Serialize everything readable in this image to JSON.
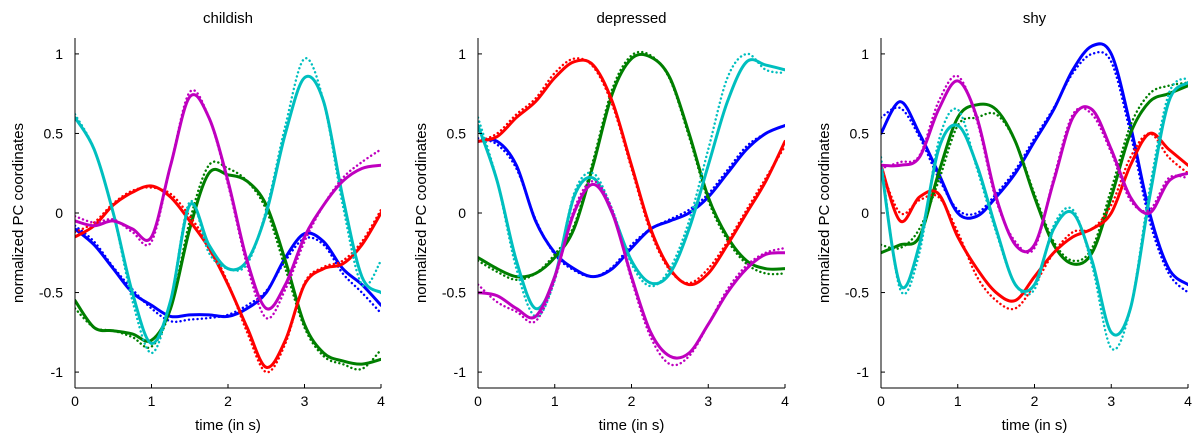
{
  "colors": {
    "blue": "#0000ff",
    "green": "#007f00",
    "red": "#ff0000",
    "cyan": "#00bfbf",
    "magenta": "#bf00bf"
  },
  "chart_data": [
    {
      "type": "line",
      "title": "childish",
      "xlabel": "time (in s)",
      "ylabel": "normalized PC coordinates",
      "xlim": [
        0,
        4
      ],
      "ylim": [
        -1.1,
        1.1
      ],
      "xticks": [
        0,
        1,
        2,
        3,
        4
      ],
      "yticks": [
        -1,
        -0.5,
        0,
        0.5,
        1
      ],
      "x": [
        0,
        0.25,
        0.5,
        0.75,
        1,
        1.25,
        1.5,
        1.75,
        2,
        2.25,
        2.5,
        2.75,
        3,
        3.25,
        3.5,
        3.75,
        4
      ],
      "series": [
        {
          "color": "blue",
          "style": "solid",
          "values": [
            -0.1,
            -0.2,
            -0.35,
            -0.5,
            -0.58,
            -0.65,
            -0.64,
            -0.64,
            -0.65,
            -0.6,
            -0.5,
            -0.28,
            -0.13,
            -0.18,
            -0.35,
            -0.45,
            -0.58
          ]
        },
        {
          "color": "blue",
          "style": "dotted",
          "values": [
            -0.08,
            -0.18,
            -0.34,
            -0.48,
            -0.6,
            -0.68,
            -0.67,
            -0.66,
            -0.64,
            -0.58,
            -0.49,
            -0.3,
            -0.16,
            -0.2,
            -0.38,
            -0.5,
            -0.63
          ]
        },
        {
          "color": "green",
          "style": "solid",
          "values": [
            -0.55,
            -0.72,
            -0.74,
            -0.76,
            -0.8,
            -0.6,
            -0.1,
            0.25,
            0.24,
            0.2,
            0.05,
            -0.3,
            -0.7,
            -0.88,
            -0.93,
            -0.95,
            -0.92
          ]
        },
        {
          "color": "green",
          "style": "dotted",
          "values": [
            -0.6,
            -0.72,
            -0.74,
            -0.78,
            -0.84,
            -0.6,
            -0.05,
            0.3,
            0.28,
            0.2,
            0.02,
            -0.35,
            -0.72,
            -0.9,
            -0.95,
            -0.98,
            -0.86
          ]
        },
        {
          "color": "red",
          "style": "solid",
          "values": [
            -0.15,
            -0.08,
            0.05,
            0.13,
            0.17,
            0.1,
            -0.05,
            -0.22,
            -0.45,
            -0.72,
            -0.97,
            -0.8,
            -0.45,
            -0.35,
            -0.32,
            -0.2,
            0.0
          ]
        },
        {
          "color": "red",
          "style": "dotted",
          "values": [
            -0.12,
            -0.06,
            0.06,
            0.14,
            0.16,
            0.12,
            -0.02,
            -0.2,
            -0.44,
            -0.75,
            -1.0,
            -0.82,
            -0.44,
            -0.34,
            -0.3,
            -0.18,
            0.02
          ]
        },
        {
          "color": "cyan",
          "style": "solid",
          "values": [
            0.6,
            0.4,
            0.0,
            -0.5,
            -0.82,
            -0.55,
            0.05,
            -0.2,
            -0.35,
            -0.3,
            0.0,
            0.5,
            0.85,
            0.7,
            0.1,
            -0.4,
            -0.5
          ]
        },
        {
          "color": "cyan",
          "style": "dotted",
          "values": [
            0.62,
            0.4,
            0.0,
            -0.55,
            -0.88,
            -0.55,
            0.07,
            -0.25,
            -0.35,
            -0.32,
            0.02,
            0.55,
            0.97,
            0.7,
            0.05,
            -0.45,
            -0.3
          ]
        },
        {
          "color": "magenta",
          "style": "solid",
          "values": [
            -0.05,
            -0.08,
            -0.05,
            -0.1,
            -0.15,
            0.3,
            0.73,
            0.6,
            0.2,
            -0.3,
            -0.6,
            -0.45,
            -0.15,
            0.05,
            0.2,
            0.28,
            0.3
          ]
        },
        {
          "color": "magenta",
          "style": "dotted",
          "values": [
            -0.02,
            -0.06,
            -0.04,
            -0.12,
            -0.18,
            0.3,
            0.76,
            0.6,
            0.18,
            -0.33,
            -0.66,
            -0.48,
            -0.18,
            0.05,
            0.22,
            0.32,
            0.4
          ]
        }
      ]
    },
    {
      "type": "line",
      "title": "depressed",
      "xlabel": "time (in s)",
      "ylabel": "normalized PC coordinates",
      "xlim": [
        0,
        4
      ],
      "ylim": [
        -1.1,
        1.1
      ],
      "xticks": [
        0,
        1,
        2,
        3,
        4
      ],
      "yticks": [
        -1,
        -0.5,
        0,
        0.5,
        1
      ],
      "x": [
        0,
        0.25,
        0.5,
        0.75,
        1,
        1.25,
        1.5,
        1.75,
        2,
        2.25,
        2.5,
        2.75,
        3,
        3.25,
        3.5,
        3.75,
        4
      ],
      "series": [
        {
          "color": "blue",
          "style": "solid",
          "values": [
            0.45,
            0.45,
            0.3,
            -0.05,
            -0.25,
            -0.35,
            -0.4,
            -0.35,
            -0.22,
            -0.1,
            -0.05,
            0.0,
            0.1,
            0.25,
            0.4,
            0.5,
            0.55
          ]
        },
        {
          "color": "blue",
          "style": "dotted",
          "values": [
            0.47,
            0.43,
            0.28,
            -0.04,
            -0.26,
            -0.36,
            -0.4,
            -0.34,
            -0.2,
            -0.1,
            -0.04,
            0.02,
            0.12,
            0.27,
            0.42,
            0.5,
            0.55
          ]
        },
        {
          "color": "green",
          "style": "solid",
          "values": [
            -0.28,
            -0.35,
            -0.4,
            -0.38,
            -0.28,
            -0.1,
            0.3,
            0.75,
            0.97,
            0.98,
            0.85,
            0.5,
            0.1,
            -0.15,
            -0.3,
            -0.35,
            -0.35
          ]
        },
        {
          "color": "green",
          "style": "dotted",
          "values": [
            -0.3,
            -0.37,
            -0.42,
            -0.38,
            -0.26,
            -0.08,
            0.33,
            0.78,
            0.99,
            0.99,
            0.84,
            0.48,
            0.08,
            -0.17,
            -0.32,
            -0.38,
            -0.38
          ]
        },
        {
          "color": "red",
          "style": "solid",
          "values": [
            0.45,
            0.48,
            0.6,
            0.7,
            0.85,
            0.95,
            0.93,
            0.7,
            0.3,
            -0.1,
            -0.35,
            -0.45,
            -0.38,
            -0.2,
            0.0,
            0.2,
            0.45
          ]
        },
        {
          "color": "red",
          "style": "dotted",
          "values": [
            0.45,
            0.5,
            0.62,
            0.72,
            0.88,
            0.97,
            0.92,
            0.68,
            0.28,
            -0.12,
            -0.36,
            -0.44,
            -0.35,
            -0.18,
            0.02,
            0.22,
            0.42
          ]
        },
        {
          "color": "cyan",
          "style": "solid",
          "values": [
            0.55,
            0.2,
            -0.3,
            -0.6,
            -0.4,
            0.1,
            0.22,
            0.0,
            -0.3,
            -0.44,
            -0.38,
            -0.1,
            0.3,
            0.7,
            0.95,
            0.93,
            0.9
          ]
        },
        {
          "color": "cyan",
          "style": "dotted",
          "values": [
            0.6,
            0.2,
            -0.35,
            -0.65,
            -0.42,
            0.12,
            0.25,
            0.02,
            -0.32,
            -0.46,
            -0.35,
            -0.05,
            0.4,
            0.85,
            1.0,
            0.9,
            0.88
          ]
        },
        {
          "color": "magenta",
          "style": "solid",
          "values": [
            -0.5,
            -0.52,
            -0.6,
            -0.65,
            -0.4,
            0.0,
            0.18,
            0.0,
            -0.4,
            -0.75,
            -0.9,
            -0.88,
            -0.7,
            -0.5,
            -0.35,
            -0.26,
            -0.25
          ]
        },
        {
          "color": "magenta",
          "style": "dotted",
          "values": [
            -0.45,
            -0.56,
            -0.62,
            -0.68,
            -0.42,
            0.02,
            0.2,
            0.02,
            -0.42,
            -0.78,
            -0.95,
            -0.9,
            -0.7,
            -0.48,
            -0.33,
            -0.25,
            -0.22
          ]
        }
      ]
    },
    {
      "type": "line",
      "title": "shy",
      "xlabel": "time (in s)",
      "ylabel": "normalized PC coordinates",
      "xlim": [
        0,
        4
      ],
      "ylim": [
        -1.1,
        1.1
      ],
      "xticks": [
        0,
        1,
        2,
        3,
        4
      ],
      "yticks": [
        -1,
        -0.5,
        0,
        0.5,
        1
      ],
      "x": [
        0,
        0.25,
        0.5,
        0.75,
        1,
        1.25,
        1.5,
        1.75,
        2,
        2.25,
        2.5,
        2.75,
        3,
        3.25,
        3.5,
        3.75,
        4
      ],
      "series": [
        {
          "color": "blue",
          "style": "solid",
          "values": [
            0.5,
            0.7,
            0.5,
            0.25,
            0.0,
            -0.02,
            0.1,
            0.25,
            0.45,
            0.65,
            0.9,
            1.05,
            1.0,
            0.55,
            0.0,
            -0.35,
            -0.45
          ]
        },
        {
          "color": "blue",
          "style": "dotted",
          "values": [
            0.6,
            0.66,
            0.48,
            0.22,
            0.02,
            0.0,
            0.12,
            0.27,
            0.47,
            0.66,
            0.88,
            1.0,
            0.95,
            0.5,
            -0.05,
            -0.38,
            -0.5
          ]
        },
        {
          "color": "green",
          "style": "solid",
          "values": [
            -0.25,
            -0.2,
            -0.15,
            0.25,
            0.6,
            0.68,
            0.65,
            0.45,
            0.1,
            -0.2,
            -0.32,
            -0.25,
            0.1,
            0.5,
            0.7,
            0.75,
            0.8
          ]
        },
        {
          "color": "green",
          "style": "dotted",
          "values": [
            -0.2,
            -0.22,
            -0.1,
            0.2,
            0.55,
            0.6,
            0.62,
            0.45,
            0.12,
            -0.18,
            -0.3,
            -0.22,
            0.15,
            0.55,
            0.75,
            0.8,
            0.82
          ]
        },
        {
          "color": "red",
          "style": "solid",
          "values": [
            0.3,
            -0.05,
            0.1,
            0.12,
            -0.15,
            -0.35,
            -0.5,
            -0.55,
            -0.4,
            -0.25,
            -0.15,
            -0.1,
            0.0,
            0.3,
            0.5,
            0.4,
            0.3
          ]
        },
        {
          "color": "red",
          "style": "dotted",
          "values": [
            0.28,
            0.0,
            0.08,
            0.1,
            -0.12,
            -0.4,
            -0.55,
            -0.6,
            -0.45,
            -0.25,
            -0.12,
            -0.1,
            0.05,
            0.35,
            0.5,
            0.35,
            0.25
          ]
        },
        {
          "color": "cyan",
          "style": "solid",
          "values": [
            0.3,
            -0.45,
            -0.2,
            0.4,
            0.55,
            0.3,
            -0.1,
            -0.45,
            -0.45,
            -0.1,
            0.0,
            -0.3,
            -0.75,
            -0.6,
            0.1,
            0.7,
            0.82
          ]
        },
        {
          "color": "cyan",
          "style": "dotted",
          "values": [
            0.35,
            -0.48,
            -0.25,
            0.45,
            0.65,
            0.28,
            -0.12,
            -0.45,
            -0.48,
            -0.08,
            0.02,
            -0.33,
            -0.85,
            -0.6,
            0.15,
            0.75,
            0.85
          ]
        },
        {
          "color": "magenta",
          "style": "solid",
          "values": [
            0.3,
            0.3,
            0.35,
            0.65,
            0.83,
            0.6,
            0.1,
            -0.2,
            -0.2,
            0.2,
            0.6,
            0.65,
            0.4,
            0.1,
            0.0,
            0.2,
            0.25
          ]
        },
        {
          "color": "magenta",
          "style": "dotted",
          "values": [
            0.28,
            0.32,
            0.36,
            0.7,
            0.86,
            0.58,
            0.08,
            -0.18,
            -0.22,
            0.22,
            0.62,
            0.62,
            0.38,
            0.08,
            0.02,
            0.22,
            0.22
          ]
        }
      ]
    }
  ]
}
